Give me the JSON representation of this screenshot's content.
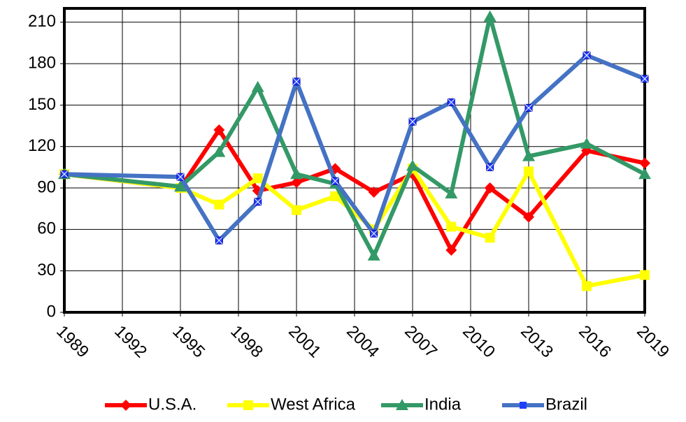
{
  "chart_data": {
    "type": "line",
    "x": [
      1989,
      1995,
      1997,
      1999,
      2001,
      2003,
      2005,
      2007,
      2009,
      2011,
      2013,
      2016,
      2019
    ],
    "series": [
      {
        "name": "U.S.A.",
        "color": "#ff0000",
        "marker": "diamond",
        "values": [
          100,
          90,
          132,
          88,
          94,
          104,
          87,
          100,
          45,
          90,
          69,
          117,
          108
        ]
      },
      {
        "name": "West Africa",
        "color": "#ffff00",
        "marker": "square",
        "values": [
          100,
          90,
          78,
          97,
          74,
          84,
          60,
          104,
          62,
          54,
          102,
          19,
          27
        ]
      },
      {
        "name": "India",
        "color": "#339966",
        "marker": "triangle",
        "values": [
          100,
          91,
          116,
          163,
          100,
          93,
          41,
          106,
          86,
          214,
          113,
          122,
          100
        ]
      },
      {
        "name": "Brazil",
        "color": "#4472c4",
        "marker": "xsquare",
        "values": [
          100,
          98,
          52,
          80,
          167,
          95,
          57,
          138,
          152,
          105,
          148,
          186,
          169
        ]
      }
    ],
    "xlim": [
      1989,
      2019
    ],
    "xticks": [
      1989,
      1992,
      1995,
      1998,
      2001,
      2004,
      2007,
      2010,
      2013,
      2016,
      2019
    ],
    "ylim": [
      0,
      220
    ],
    "yticks": [
      0,
      30,
      60,
      90,
      120,
      150,
      180,
      210
    ],
    "grid": true,
    "legend": "bottom"
  }
}
